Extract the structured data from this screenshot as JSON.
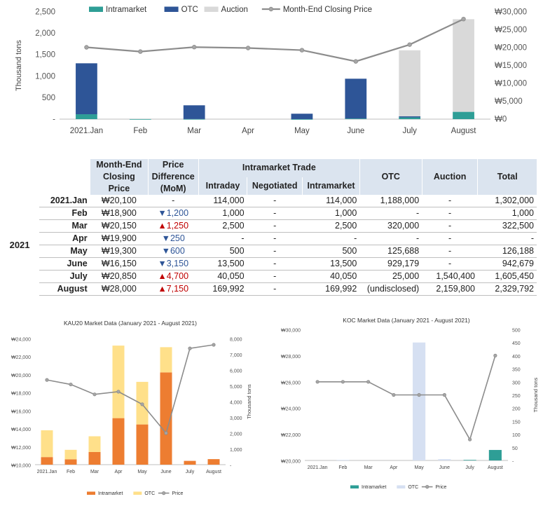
{
  "colors": {
    "intramarket": "#2e9e96",
    "otc": "#2e5597",
    "auction": "#d9d9d9",
    "price": "#808080",
    "kau_intra": "#ed7d31",
    "kau_otc": "#ffe08a",
    "koc_otc": "#d6e0f2",
    "down": "#2e5597",
    "up": "#c00000"
  },
  "charts": [
    {
      "id": "top",
      "type": "bar",
      "stacked": true,
      "title": "",
      "categories": [
        "2021.Jan",
        "Feb",
        "Mar",
        "Apr",
        "May",
        "June",
        "July",
        "August"
      ],
      "ylabel": "Thousand tons",
      "ylim": [
        0,
        2500
      ],
      "left_ticks": [
        "-",
        "500",
        "1,000",
        "1,500",
        "2,000",
        "2,500"
      ],
      "y2lim": [
        0,
        30000
      ],
      "right_ticks": [
        "₩0",
        "₩5,000",
        "₩10,000",
        "₩15,000",
        "₩20,000",
        "₩25,000",
        "₩30,000"
      ],
      "legend": [
        "Intramarket",
        "OTC",
        "Auction",
        "Month-End Closing Price"
      ],
      "series": [
        {
          "name": "Intramarket",
          "values": [
            114,
            1,
            2.5,
            0,
            0.5,
            13.5,
            40,
            170
          ]
        },
        {
          "name": "OTC",
          "values": [
            1188,
            0,
            320,
            0,
            126,
            929,
            25,
            0
          ]
        },
        {
          "name": "Auction",
          "values": [
            0,
            0,
            0,
            0,
            0,
            0,
            1540,
            2160
          ]
        }
      ],
      "line": {
        "name": "Month-End Closing Price",
        "values": [
          20100,
          18900,
          20150,
          19900,
          19300,
          16150,
          20850,
          28000
        ]
      }
    },
    {
      "id": "kau",
      "type": "bar",
      "stacked": true,
      "title": "KAU20 Market Data (January 2021 - August 2021)",
      "categories": [
        "2021.Jan",
        "Feb",
        "Mar",
        "Apr",
        "May",
        "June",
        "July",
        "August"
      ],
      "ylabel": "Thousand tons",
      "ylim": [
        0,
        8000
      ],
      "right_ticks": [
        "-",
        "1,000",
        "2,000",
        "3,000",
        "4,000",
        "5,000",
        "6,000",
        "7,000",
        "8,000"
      ],
      "y2lim": [
        10000,
        24000
      ],
      "left_ticks": [
        "₩10,000",
        "₩12,000",
        "₩14,000",
        "₩16,000",
        "₩18,000",
        "₩20,000",
        "₩22,000",
        "₩24,000"
      ],
      "legend": [
        "Intramarket",
        "OTC",
        "Price"
      ],
      "series": [
        {
          "name": "Intramarket",
          "values": [
            480,
            340,
            800,
            2950,
            2550,
            5850,
            240,
            350
          ]
        },
        {
          "name": "OTC",
          "values": [
            1700,
            600,
            1000,
            4600,
            2700,
            1600,
            0,
            0
          ]
        }
      ],
      "line": {
        "name": "Price",
        "values": [
          19400,
          18900,
          17800,
          18100,
          16700,
          13500,
          22900,
          23300
        ]
      }
    },
    {
      "id": "koc",
      "type": "bar",
      "stacked": true,
      "title": "KOC Market Data (January 2021 - August 2021)",
      "categories": [
        "2021.Jan",
        "Feb",
        "Mar",
        "Apr",
        "May",
        "June",
        "July",
        "August"
      ],
      "ylabel": "Thousand tons",
      "ylim": [
        0,
        500
      ],
      "right_ticks": [
        "-",
        "50",
        "100",
        "150",
        "200",
        "250",
        "300",
        "350",
        "400",
        "450",
        "500"
      ],
      "y2lim": [
        20000,
        30000
      ],
      "left_ticks": [
        "₩20,000",
        "₩22,000",
        "₩24,000",
        "₩26,000",
        "₩28,000",
        "₩30,000"
      ],
      "legend": [
        "Intramarket",
        "OTC",
        "Price"
      ],
      "series": [
        {
          "name": "Intramarket",
          "values": [
            0,
            0,
            0,
            0,
            0,
            0,
            2,
            40
          ]
        },
        {
          "name": "OTC",
          "values": [
            0,
            2,
            0,
            0,
            450,
            5,
            0,
            0
          ]
        }
      ],
      "line": {
        "name": "Price",
        "values": [
          26000,
          26000,
          26000,
          25000,
          25000,
          25000,
          21600,
          28000
        ]
      }
    }
  ],
  "table": {
    "year": "2021",
    "headers": {
      "closing": "Month-End Closing Price",
      "closing_lines": [
        "Month-End",
        "Closing",
        "Price"
      ],
      "diff_lines": [
        "Price",
        "Difference",
        "(MoM)"
      ],
      "intramarket_trade": "Intramarket Trade",
      "intraday": "Intraday",
      "negotiated": "Negotiated",
      "intramarket": "Intramarket",
      "otc": "OTC",
      "auction": "Auction",
      "total": "Total"
    },
    "rows": [
      {
        "month": "2021.Jan",
        "price": "₩20,100",
        "arrow": "",
        "diff": "-",
        "dir": "none",
        "intraday": "114,000",
        "negotiated": "-",
        "intramarket": "114,000",
        "otc": "1,188,000",
        "auction": "-",
        "total": "1,302,000"
      },
      {
        "month": "Feb",
        "price": "₩18,900",
        "arrow": "▼",
        "diff": "1,200",
        "dir": "down",
        "intraday": "1,000",
        "negotiated": "-",
        "intramarket": "1,000",
        "otc": "-",
        "auction": "-",
        "total": "1,000"
      },
      {
        "month": "Mar",
        "price": "₩20,150",
        "arrow": "▲",
        "diff": "1,250",
        "dir": "up",
        "intraday": "2,500",
        "negotiated": "-",
        "intramarket": "2,500",
        "otc": "320,000",
        "auction": "-",
        "total": "322,500"
      },
      {
        "month": "Apr",
        "price": "₩19,900",
        "arrow": "▼",
        "diff": "250",
        "dir": "down",
        "intraday": "-",
        "negotiated": "-",
        "intramarket": "-",
        "otc": "-",
        "auction": "-",
        "total": "-"
      },
      {
        "month": "May",
        "price": "₩19,300",
        "arrow": "▼",
        "diff": "600",
        "dir": "down",
        "intraday": "500",
        "negotiated": "-",
        "intramarket": "500",
        "otc": "125,688",
        "auction": "-",
        "total": "126,188"
      },
      {
        "month": "June",
        "price": "₩16,150",
        "arrow": "▼",
        "diff": "3,150",
        "dir": "down",
        "intraday": "13,500",
        "negotiated": "-",
        "intramarket": "13,500",
        "otc": "929,179",
        "auction": "-",
        "total": "942,679"
      },
      {
        "month": "July",
        "price": "₩20,850",
        "arrow": "▲",
        "diff": "4,700",
        "dir": "up",
        "intraday": "40,050",
        "negotiated": "-",
        "intramarket": "40,050",
        "otc": "25,000",
        "auction": "1,540,400",
        "total": "1,605,450"
      },
      {
        "month": "August",
        "price": "₩28,000",
        "arrow": "▲",
        "diff": "7,150",
        "dir": "up",
        "intraday": "169,992",
        "negotiated": "-",
        "intramarket": "169,992",
        "otc": "(undisclosed)",
        "auction": "2,159,800",
        "total": "2,329,792"
      }
    ]
  }
}
